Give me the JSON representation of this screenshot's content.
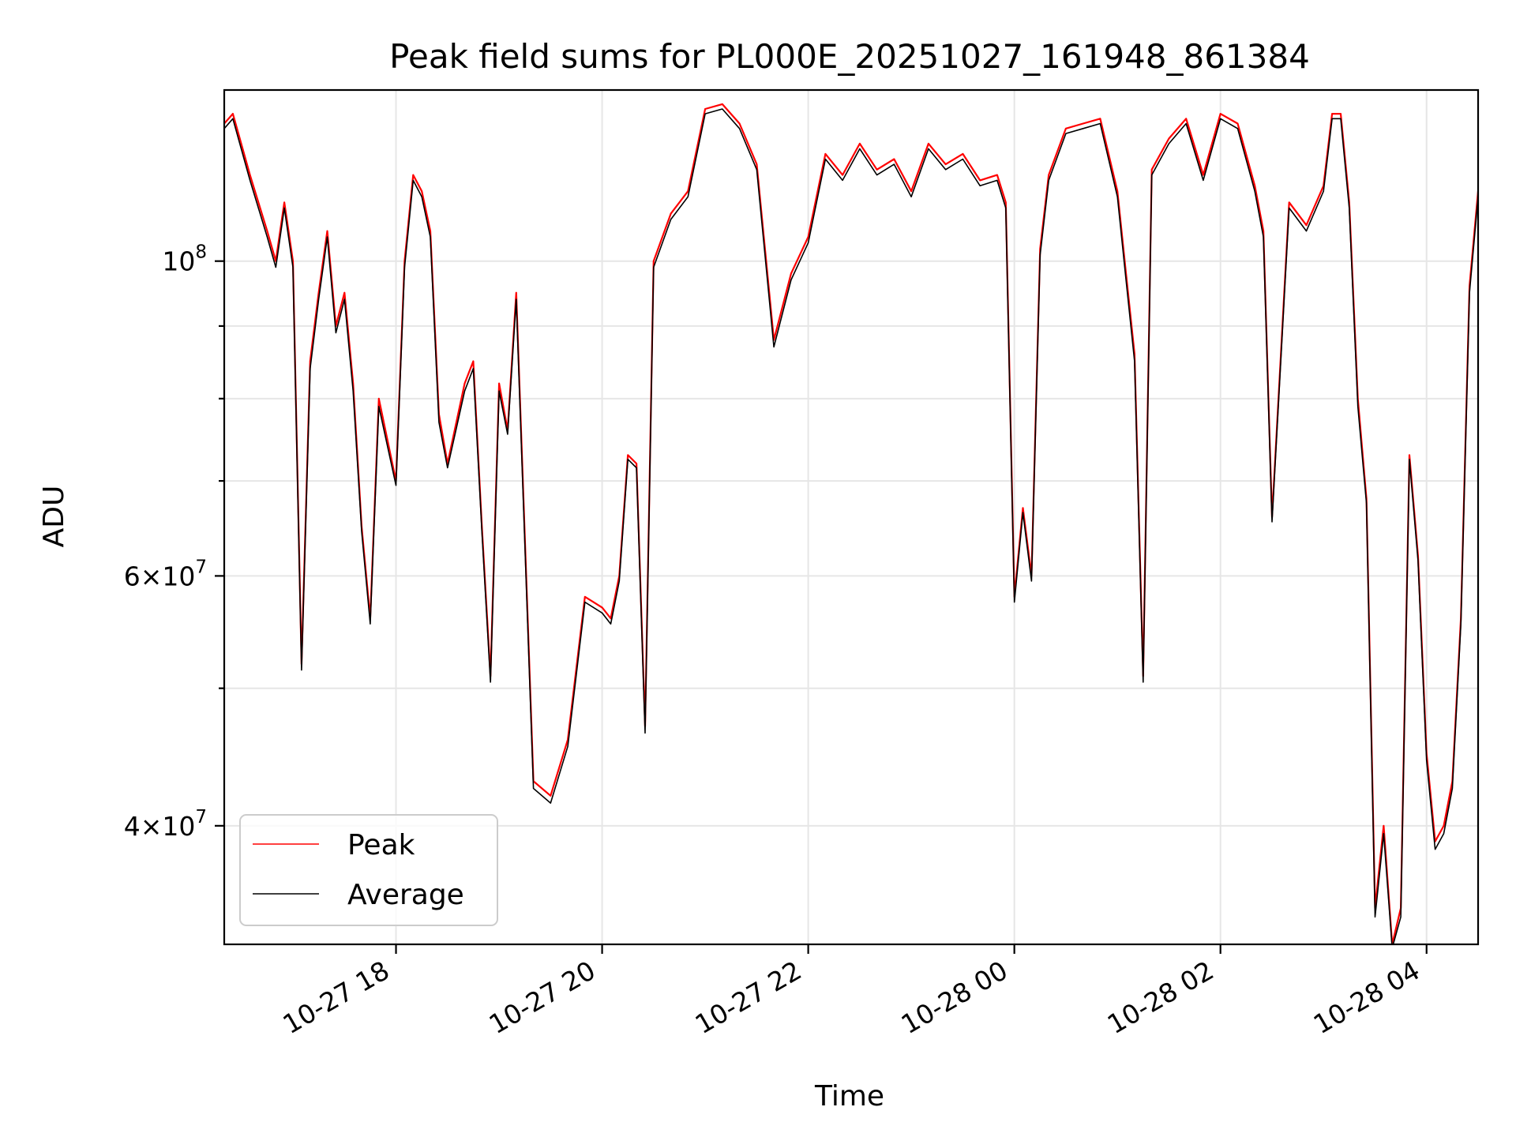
{
  "chart_data": {
    "type": "line",
    "title": "Peak field sums for PL000E_20251027_161948_861384",
    "xlabel": "Time",
    "ylabel": "ADU",
    "y_scale": "log",
    "ylim": [
      33000000,
      132000000
    ],
    "xlim": [
      "2025-10-27 16:20",
      "2025-10-28 04:30"
    ],
    "grid": true,
    "legend_position": "lower-left",
    "x_ticks": [
      {
        "value": "2025-10-27 18:00",
        "label": "10-27 18"
      },
      {
        "value": "2025-10-27 20:00",
        "label": "10-27 20"
      },
      {
        "value": "2025-10-27 22:00",
        "label": "10-27 22"
      },
      {
        "value": "2025-10-28 00:00",
        "label": "10-28 00"
      },
      {
        "value": "2025-10-28 02:00",
        "label": "10-28 02"
      },
      {
        "value": "2025-10-28 04:00",
        "label": "10-28 04"
      }
    ],
    "y_ticks": [
      {
        "value": 100000000,
        "base": "10",
        "exp": "8",
        "mult": ""
      },
      {
        "value": 60000000,
        "base": "10",
        "exp": "7",
        "mult": "6"
      },
      {
        "value": 40000000,
        "base": "10",
        "exp": "7",
        "mult": "4"
      }
    ],
    "y_minor_ticks": [
      50000000,
      70000000,
      80000000,
      90000000
    ],
    "series": [
      {
        "name": "Peak",
        "color": "#ff0000",
        "x": [
          "2025-10-27 16:20",
          "2025-10-27 16:25",
          "2025-10-27 16:35",
          "2025-10-27 16:45",
          "2025-10-27 16:50",
          "2025-10-27 16:55",
          "2025-10-27 17:00",
          "2025-10-27 17:05",
          "2025-10-27 17:10",
          "2025-10-27 17:15",
          "2025-10-27 17:20",
          "2025-10-27 17:25",
          "2025-10-27 17:30",
          "2025-10-27 17:35",
          "2025-10-27 17:40",
          "2025-10-27 17:45",
          "2025-10-27 17:50",
          "2025-10-27 18:00",
          "2025-10-27 18:05",
          "2025-10-27 18:10",
          "2025-10-27 18:15",
          "2025-10-27 18:20",
          "2025-10-27 18:25",
          "2025-10-27 18:30",
          "2025-10-27 18:40",
          "2025-10-27 18:45",
          "2025-10-27 18:50",
          "2025-10-27 18:55",
          "2025-10-27 19:00",
          "2025-10-27 19:05",
          "2025-10-27 19:10",
          "2025-10-27 19:20",
          "2025-10-27 19:30",
          "2025-10-27 19:40",
          "2025-10-27 19:50",
          "2025-10-27 20:00",
          "2025-10-27 20:05",
          "2025-10-27 20:10",
          "2025-10-27 20:15",
          "2025-10-27 20:20",
          "2025-10-27 20:25",
          "2025-10-27 20:30",
          "2025-10-27 20:40",
          "2025-10-27 20:50",
          "2025-10-27 21:00",
          "2025-10-27 21:10",
          "2025-10-27 21:20",
          "2025-10-27 21:30",
          "2025-10-27 21:40",
          "2025-10-27 21:50",
          "2025-10-27 22:00",
          "2025-10-27 22:10",
          "2025-10-27 22:20",
          "2025-10-27 22:30",
          "2025-10-27 22:40",
          "2025-10-27 22:50",
          "2025-10-27 23:00",
          "2025-10-27 23:10",
          "2025-10-27 23:20",
          "2025-10-27 23:30",
          "2025-10-27 23:40",
          "2025-10-27 23:50",
          "2025-10-27 23:55",
          "2025-10-28 00:00",
          "2025-10-28 00:05",
          "2025-10-28 00:10",
          "2025-10-28 00:15",
          "2025-10-28 00:20",
          "2025-10-28 00:30",
          "2025-10-28 00:40",
          "2025-10-28 00:50",
          "2025-10-28 01:00",
          "2025-10-28 01:05",
          "2025-10-28 01:10",
          "2025-10-28 01:15",
          "2025-10-28 01:20",
          "2025-10-28 01:30",
          "2025-10-28 01:40",
          "2025-10-28 01:50",
          "2025-10-28 02:00",
          "2025-10-28 02:10",
          "2025-10-28 02:20",
          "2025-10-28 02:25",
          "2025-10-28 02:30",
          "2025-10-28 02:40",
          "2025-10-28 02:50",
          "2025-10-28 03:00",
          "2025-10-28 03:05",
          "2025-10-28 03:10",
          "2025-10-28 03:15",
          "2025-10-28 03:20",
          "2025-10-28 03:25",
          "2025-10-28 03:30",
          "2025-10-28 03:35",
          "2025-10-28 03:40",
          "2025-10-28 03:45",
          "2025-10-28 03:50",
          "2025-10-28 03:55",
          "2025-10-28 04:00",
          "2025-10-28 04:05",
          "2025-10-28 04:10",
          "2025-10-28 04:15",
          "2025-10-28 04:20",
          "2025-10-28 04:25",
          "2025-10-28 04:30"
        ],
        "y": [
          125000000,
          127000000,
          115000000,
          105000000,
          100000000,
          110000000,
          100000000,
          52000000,
          85000000,
          95000000,
          105000000,
          90000000,
          95000000,
          82000000,
          65000000,
          56000000,
          80000000,
          70000000,
          100000000,
          115000000,
          112000000,
          105000000,
          78000000,
          72000000,
          82000000,
          85000000,
          65000000,
          51000000,
          82000000,
          76000000,
          95000000,
          43000000,
          42000000,
          46000000,
          58000000,
          57000000,
          56000000,
          60000000,
          73000000,
          72000000,
          47000000,
          100000000,
          108000000,
          112000000,
          128000000,
          129000000,
          125000000,
          117000000,
          88000000,
          98000000,
          104000000,
          119000000,
          115000000,
          121000000,
          116000000,
          118000000,
          112000000,
          121000000,
          117000000,
          119000000,
          114000000,
          115000000,
          110000000,
          58000000,
          67000000,
          60000000,
          102000000,
          115000000,
          124000000,
          125000000,
          126000000,
          112000000,
          98000000,
          86000000,
          51000000,
          116000000,
          122000000,
          126000000,
          115000000,
          127000000,
          125000000,
          113000000,
          105000000,
          66000000,
          110000000,
          106000000,
          113000000,
          127000000,
          127000000,
          110000000,
          80000000,
          68000000,
          35000000,
          40000000,
          33000000,
          35000000,
          73000000,
          62000000,
          45000000,
          39000000,
          40000000,
          43000000,
          56000000,
          96000000,
          112000000
        ]
      },
      {
        "name": "Average",
        "color": "#000000",
        "x": [
          "2025-10-27 16:20",
          "2025-10-27 16:25",
          "2025-10-27 16:35",
          "2025-10-27 16:45",
          "2025-10-27 16:50",
          "2025-10-27 16:55",
          "2025-10-27 17:00",
          "2025-10-27 17:05",
          "2025-10-27 17:10",
          "2025-10-27 17:15",
          "2025-10-27 17:20",
          "2025-10-27 17:25",
          "2025-10-27 17:30",
          "2025-10-27 17:35",
          "2025-10-27 17:40",
          "2025-10-27 17:45",
          "2025-10-27 17:50",
          "2025-10-27 18:00",
          "2025-10-27 18:05",
          "2025-10-27 18:10",
          "2025-10-27 18:15",
          "2025-10-27 18:20",
          "2025-10-27 18:25",
          "2025-10-27 18:30",
          "2025-10-27 18:40",
          "2025-10-27 18:45",
          "2025-10-27 18:50",
          "2025-10-27 18:55",
          "2025-10-27 19:00",
          "2025-10-27 19:05",
          "2025-10-27 19:10",
          "2025-10-27 19:20",
          "2025-10-27 19:30",
          "2025-10-27 19:40",
          "2025-10-27 19:50",
          "2025-10-27 20:00",
          "2025-10-27 20:05",
          "2025-10-27 20:10",
          "2025-10-27 20:15",
          "2025-10-27 20:20",
          "2025-10-27 20:25",
          "2025-10-27 20:30",
          "2025-10-27 20:40",
          "2025-10-27 20:50",
          "2025-10-27 21:00",
          "2025-10-27 21:10",
          "2025-10-27 21:20",
          "2025-10-27 21:30",
          "2025-10-27 21:40",
          "2025-10-27 21:50",
          "2025-10-27 22:00",
          "2025-10-27 22:10",
          "2025-10-27 22:20",
          "2025-10-27 22:30",
          "2025-10-27 22:40",
          "2025-10-27 22:50",
          "2025-10-27 23:00",
          "2025-10-27 23:10",
          "2025-10-27 23:20",
          "2025-10-27 23:30",
          "2025-10-27 23:40",
          "2025-10-27 23:50",
          "2025-10-27 23:55",
          "2025-10-28 00:00",
          "2025-10-28 00:05",
          "2025-10-28 00:10",
          "2025-10-28 00:15",
          "2025-10-28 00:20",
          "2025-10-28 00:30",
          "2025-10-28 00:40",
          "2025-10-28 00:50",
          "2025-10-28 01:00",
          "2025-10-28 01:05",
          "2025-10-28 01:10",
          "2025-10-28 01:15",
          "2025-10-28 01:20",
          "2025-10-28 01:30",
          "2025-10-28 01:40",
          "2025-10-28 01:50",
          "2025-10-28 02:00",
          "2025-10-28 02:10",
          "2025-10-28 02:20",
          "2025-10-28 02:25",
          "2025-10-28 02:30",
          "2025-10-28 02:40",
          "2025-10-28 02:50",
          "2025-10-28 03:00",
          "2025-10-28 03:05",
          "2025-10-28 03:10",
          "2025-10-28 03:15",
          "2025-10-28 03:20",
          "2025-10-28 03:25",
          "2025-10-28 03:30",
          "2025-10-28 03:35",
          "2025-10-28 03:40",
          "2025-10-28 03:45",
          "2025-10-28 03:50",
          "2025-10-28 03:55",
          "2025-10-28 04:00",
          "2025-10-28 04:05",
          "2025-10-28 04:10",
          "2025-10-28 04:15",
          "2025-10-28 04:20",
          "2025-10-28 04:25",
          "2025-10-28 04:30"
        ],
        "y": [
          124000000,
          126000000,
          114000000,
          104000000,
          99000000,
          109000000,
          99000000,
          51500000,
          84000000,
          94000000,
          104000000,
          89000000,
          94000000,
          81000000,
          64500000,
          55500000,
          79000000,
          69500000,
          99000000,
          114000000,
          111000000,
          104000000,
          77000000,
          71500000,
          81000000,
          84000000,
          64500000,
          50500000,
          81000000,
          75500000,
          94000000,
          42500000,
          41500000,
          45500000,
          57500000,
          56500000,
          55500000,
          59500000,
          72500000,
          71500000,
          46500000,
          99000000,
          107000000,
          111000000,
          127000000,
          128000000,
          124000000,
          116000000,
          87000000,
          97000000,
          103000000,
          118000000,
          114000000,
          120000000,
          115000000,
          117000000,
          111000000,
          120000000,
          116000000,
          118000000,
          113000000,
          114000000,
          109000000,
          57500000,
          66500000,
          59500000,
          101000000,
          114000000,
          123000000,
          124000000,
          125000000,
          111000000,
          97000000,
          85000000,
          50500000,
          115000000,
          121000000,
          125000000,
          114000000,
          126000000,
          124000000,
          112000000,
          104000000,
          65500000,
          109000000,
          105000000,
          112000000,
          126000000,
          126000000,
          109000000,
          79000000,
          67500000,
          34500000,
          39500000,
          32800000,
          34500000,
          72500000,
          61500000,
          44500000,
          38500000,
          39500000,
          42500000,
          55500000,
          95000000,
          111000000
        ]
      }
    ]
  }
}
